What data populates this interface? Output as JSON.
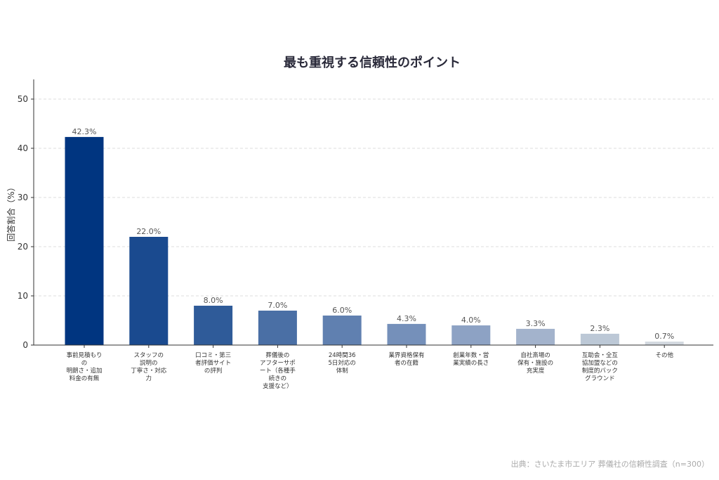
{
  "chart_data": {
    "type": "bar",
    "title": "最も重視する信頼性のポイント",
    "ylabel": "回答割合（%）",
    "xlabel": "",
    "ylim": [
      0,
      54
    ],
    "yticks": [
      0,
      10,
      20,
      30,
      40,
      50
    ],
    "grid": true,
    "categories": [
      [
        "事前見積もり",
        "の",
        "明朗さ・追加",
        "料金の有無"
      ],
      [
        "スタッフの",
        "説明の",
        "丁寧さ・対応",
        "力"
      ],
      [
        "口コミ・第三",
        "者評価サイト",
        "の評判"
      ],
      [
        "葬儀後の",
        "アフターサポ",
        "ート（各種手",
        "続きの",
        "支援など）"
      ],
      [
        "24時間36",
        "5日対応の",
        "体制"
      ],
      [
        "業界資格保有",
        "者の在籍"
      ],
      [
        "創業年数・営",
        "業実績の長さ"
      ],
      [
        "自社斎場の",
        "保有・施設の",
        "充実度"
      ],
      [
        "互助会・全互",
        "協加盟などの",
        "制度的バック",
        "グラウンド"
      ],
      [
        "その他"
      ]
    ],
    "values": [
      42.3,
      22.0,
      8.0,
      7.0,
      6.0,
      4.3,
      4.0,
      3.3,
      2.3,
      0.7
    ],
    "value_labels": [
      "42.3%",
      "22.0%",
      "8.0%",
      "7.0%",
      "6.0%",
      "4.3%",
      "4.0%",
      "3.3%",
      "2.3%",
      "0.7%"
    ],
    "colors": [
      "#003580",
      "#1a4a8f",
      "#2f5b99",
      "#4a6fa5",
      "#6080b0",
      "#7590ba",
      "#8da2c4",
      "#a3b3cc",
      "#bcc8d6",
      "#d2d8df"
    ]
  },
  "source": "出典：さいたま市エリア 葬儀社の信頼性調査（n=300）"
}
